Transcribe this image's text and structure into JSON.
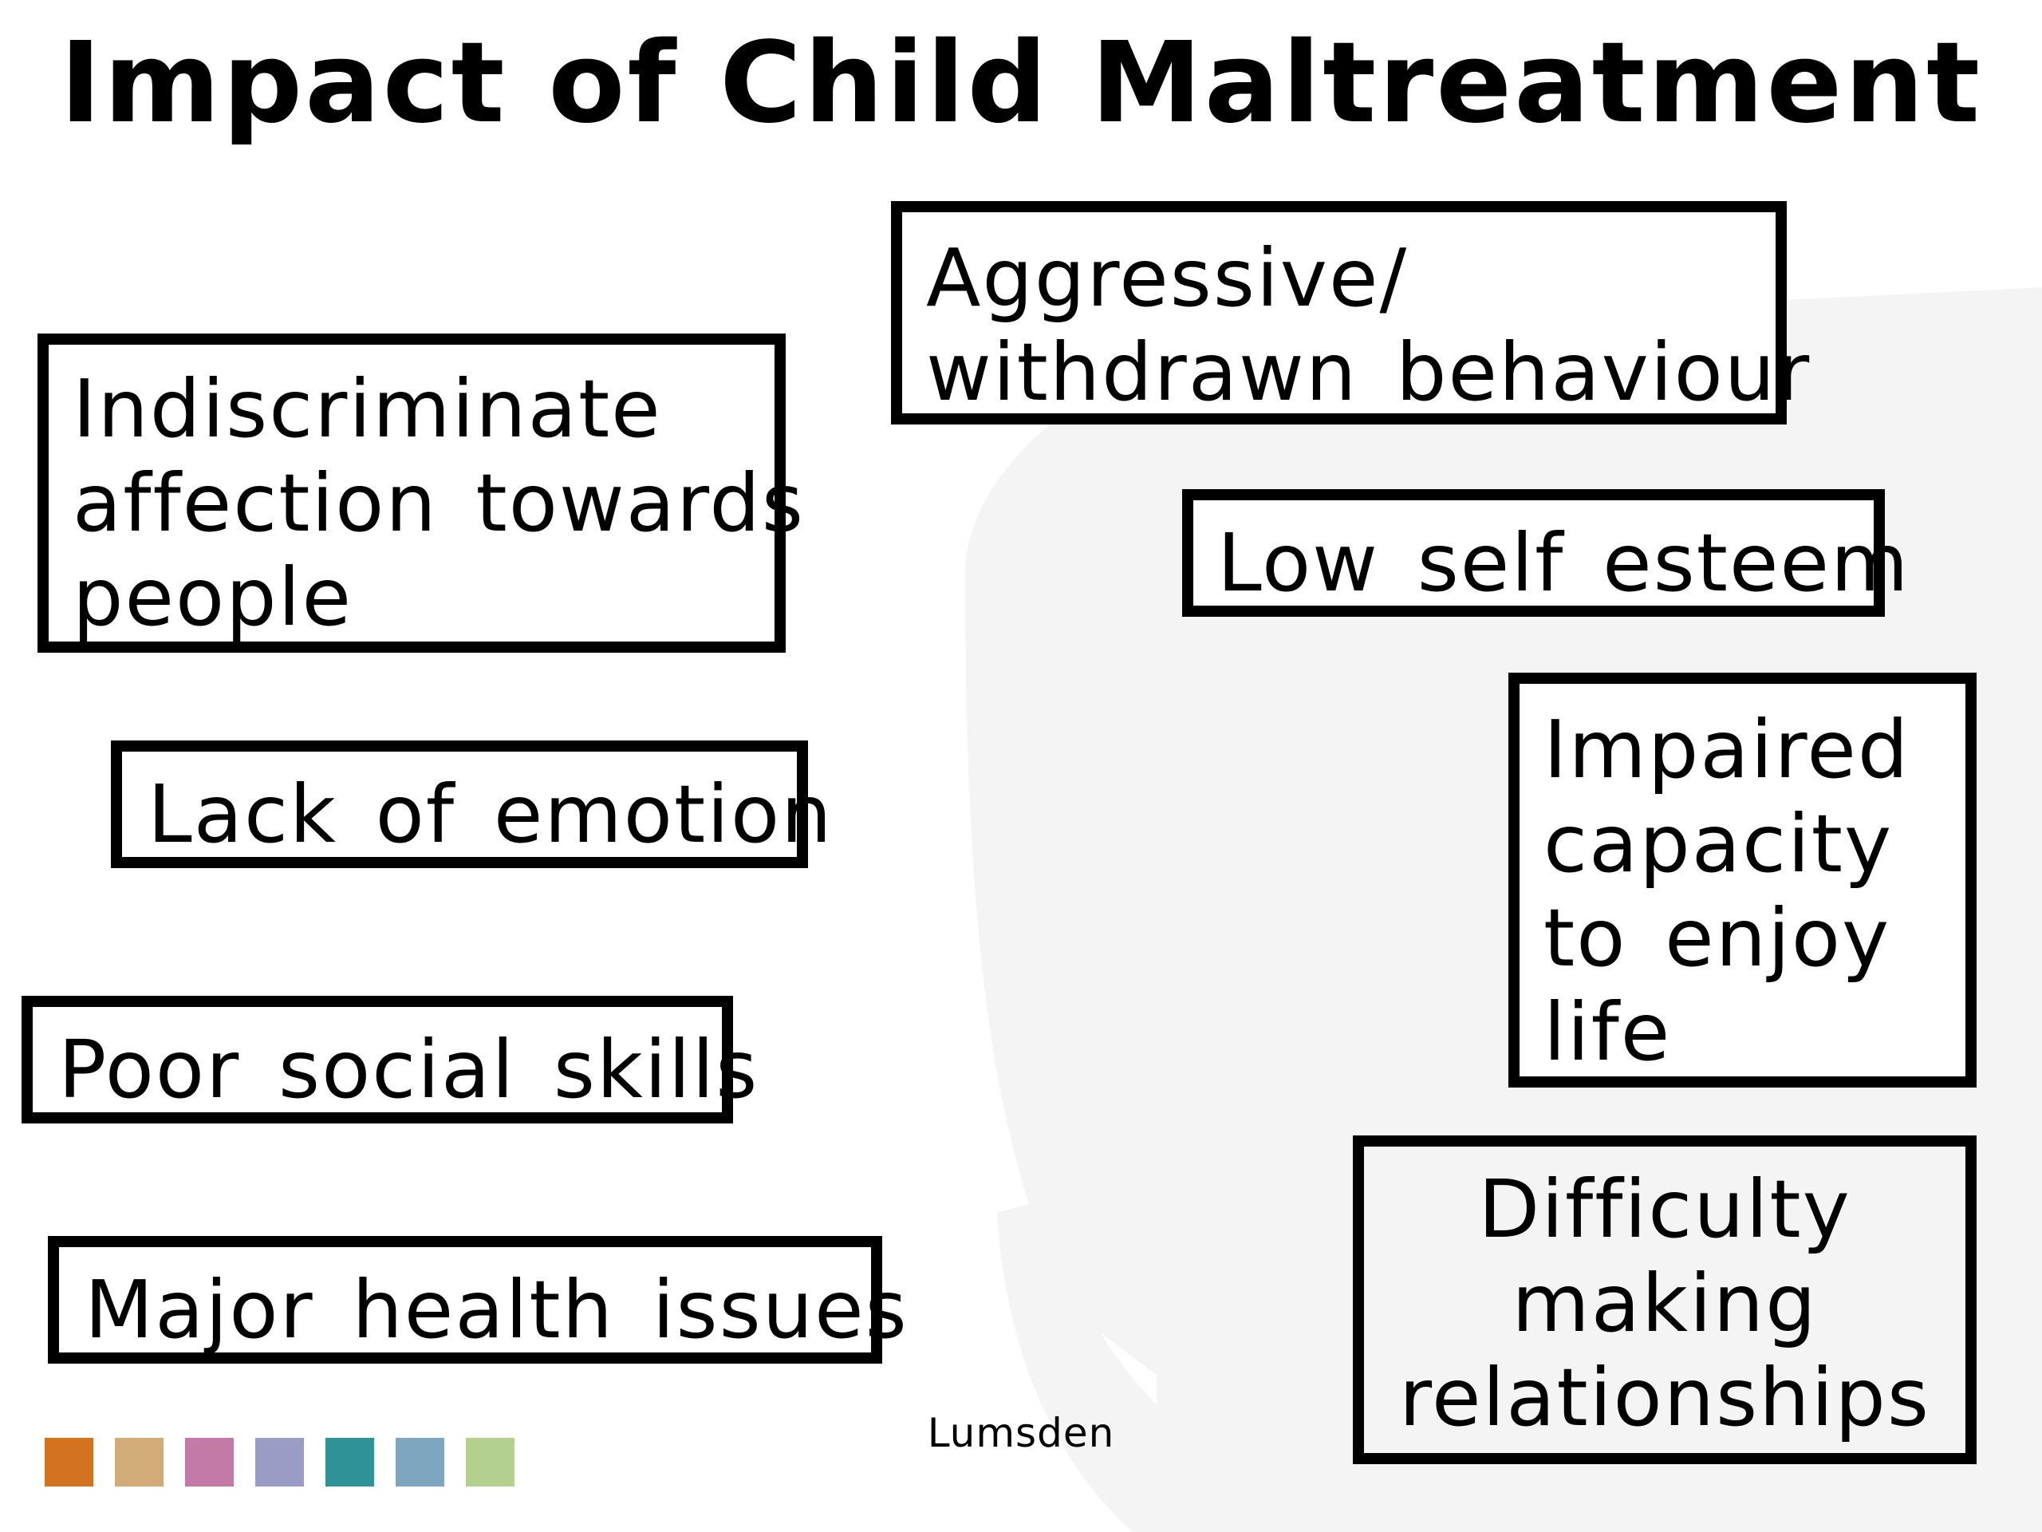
{
  "title": "Impact of Child Maltreatment",
  "boxes": {
    "aggressive": [
      "Aggressive/",
      "withdrawn behaviour"
    ],
    "indiscriminate": [
      "Indiscriminate",
      "affection towards",
      "people"
    ],
    "low_esteem": [
      "Low self esteem"
    ],
    "lack_emotion": [
      "Lack of emotion"
    ],
    "impaired": [
      "Impaired",
      "capacity",
      "to enjoy",
      "life"
    ],
    "poor_social": [
      "Poor social skills"
    ],
    "health": [
      "Major health issues"
    ],
    "difficulty": [
      "Difficulty",
      "making",
      "relationships"
    ]
  },
  "footer": {
    "name": "Lumsden"
  },
  "swatches": [
    "#d4731f",
    "#d1ac78",
    "#c37aa6",
    "#9b9cc5",
    "#2e9296",
    "#7ea6bf",
    "#b4d08e"
  ],
  "watermark_color": "#f4f4f4"
}
